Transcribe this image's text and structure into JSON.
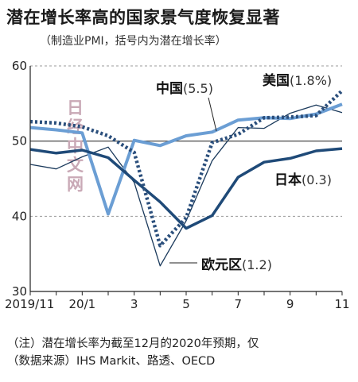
{
  "title": "潜在增长率高的国家景气度恢复显著",
  "subtitle": "（制造业PMI，括号内为潜在增长率）",
  "notes": {
    "line1": "（注）潜在增长率为截至12月的2020年预期，仅",
    "line2": "（数据来源）IHS Markit、路透、OECD"
  },
  "watermark": [
    "日",
    "经",
    "中",
    "文",
    "网"
  ],
  "colors": {
    "china": "#6b9ed4",
    "usa": "#2b4f7c",
    "eurozone": "#1b3a5c",
    "japan": "#1f4a78",
    "grid_dashed": "#9a9a9a",
    "grid_50": "#333333"
  },
  "chart_data": {
    "type": "line",
    "x": [
      "2019/11",
      "2019/12",
      "2020/1",
      "2020/2",
      "2020/3",
      "2020/4",
      "2020/5",
      "2020/6",
      "2020/7",
      "2020/8",
      "2020/9",
      "2020/10",
      "2020/11"
    ],
    "x_tick_labels": [
      "2019/11",
      "",
      "20/1",
      "",
      "3",
      "",
      "5",
      "",
      "7",
      "",
      "9",
      "",
      "11"
    ],
    "ylim": [
      30,
      60
    ],
    "y_ticks": [
      30,
      40,
      50,
      60
    ],
    "grid": {
      "dashed": [
        40,
        60
      ],
      "solid": [
        50
      ]
    },
    "series": [
      {
        "key": "china",
        "name": "中国",
        "value_label": "(5.5)",
        "style": "solid-light",
        "values": [
          51.8,
          51.5,
          51.1,
          40.3,
          50.1,
          49.4,
          50.7,
          51.2,
          52.8,
          53.1,
          53.0,
          53.6,
          54.9
        ]
      },
      {
        "key": "usa",
        "name": "美国",
        "value_label": "(1.8%)",
        "style": "dotted",
        "values": [
          52.6,
          52.4,
          51.9,
          50.7,
          48.5,
          36.1,
          39.8,
          49.8,
          50.9,
          53.1,
          53.2,
          53.4,
          56.7
        ]
      },
      {
        "key": "eurozone",
        "name": "欧元区",
        "value_label": "(1.2)",
        "style": "solid-thin",
        "values": [
          46.9,
          46.3,
          47.9,
          49.2,
          44.5,
          33.4,
          39.4,
          47.4,
          51.8,
          51.7,
          53.7,
          54.8,
          53.8
        ]
      },
      {
        "key": "japan",
        "name": "日本",
        "value_label": "(0.3)",
        "style": "solid-thick",
        "values": [
          48.9,
          48.4,
          48.8,
          47.8,
          44.8,
          41.9,
          38.4,
          40.1,
          45.2,
          47.2,
          47.7,
          48.7,
          49.0
        ]
      }
    ]
  }
}
